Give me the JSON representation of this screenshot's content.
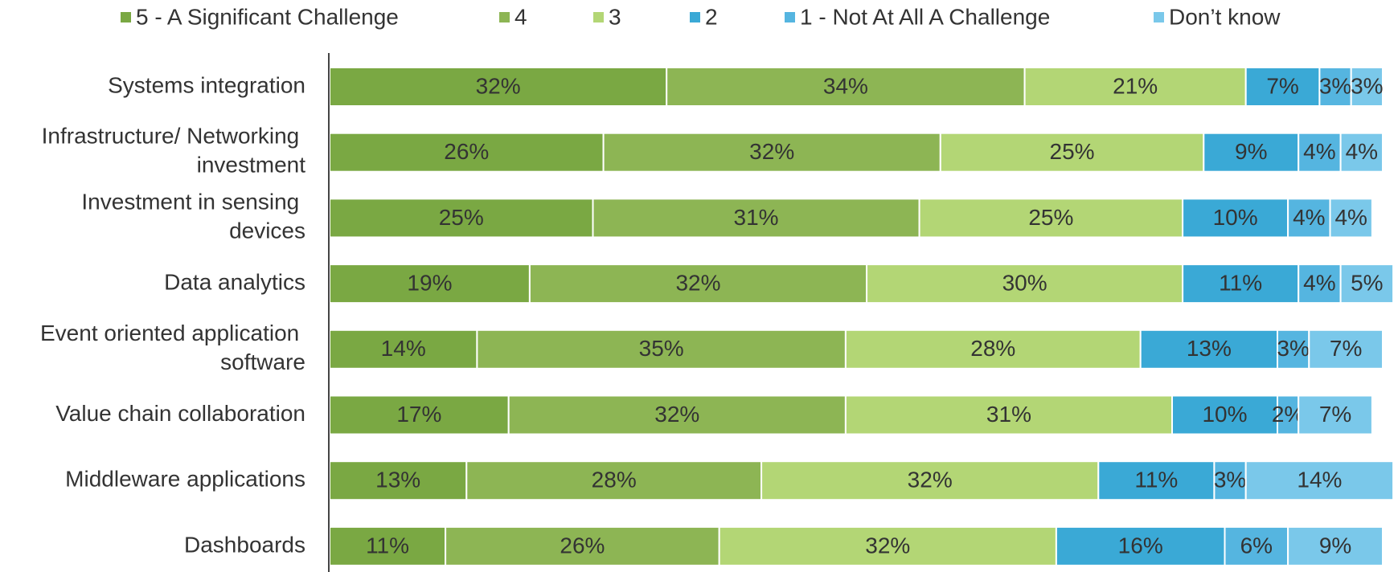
{
  "chart_data": {
    "type": "stacked_bar_horizontal",
    "categories": [
      "Systems integration",
      "Infrastructure/ Networking investment",
      "Investment in sensing devices",
      "Data analytics",
      "Event oriented application software",
      "Value chain collaboration",
      "Middleware applications",
      "Dashboards"
    ],
    "xlim": [
      0,
      100
    ],
    "legend": "top",
    "series": [
      {
        "name": "5 - A Significant Challenge",
        "color": "#7aa843",
        "values": [
          32,
          26,
          25,
          19,
          14,
          17,
          13,
          11
        ],
        "value_labels": [
          "32%",
          "26%",
          "25%",
          "19%",
          "14%",
          "17%",
          "13%",
          "11%"
        ]
      },
      {
        "name": "4",
        "color": "#8db554",
        "values": [
          34,
          32,
          31,
          32,
          35,
          32,
          28,
          26
        ],
        "value_labels": [
          "34%",
          "32%",
          "31%",
          "32%",
          "35%",
          "32%",
          "28%",
          "26%"
        ]
      },
      {
        "name": "3",
        "color": "#b3d675",
        "values": [
          21,
          25,
          25,
          30,
          28,
          31,
          32,
          32
        ],
        "value_labels": [
          "21%",
          "25%",
          "25%",
          "30%",
          "28%",
          "31%",
          "32%",
          "32%"
        ]
      },
      {
        "name": "2",
        "color": "#3aa9d6",
        "values": [
          7,
          9,
          10,
          11,
          13,
          10,
          11,
          16
        ],
        "value_labels": [
          "7%",
          "9%",
          "10%",
          "11%",
          "13%",
          "10%",
          "11%",
          "16%"
        ]
      },
      {
        "name": "1 - Not At All A Challenge",
        "color": "#55b5e0",
        "values": [
          3,
          4,
          4,
          4,
          3,
          2,
          3,
          6
        ],
        "value_labels": [
          "3%",
          "4%",
          "4%",
          "4%",
          "3%",
          "2%",
          "3%",
          "6%"
        ]
      },
      {
        "name": "Don’t know",
        "color": "#7ac8ea",
        "values": [
          3,
          4,
          4,
          5,
          7,
          7,
          14,
          9
        ],
        "value_labels": [
          "3%",
          "4%",
          "4%",
          "5%",
          "7%",
          "7%",
          "14%",
          "9%"
        ]
      }
    ]
  }
}
